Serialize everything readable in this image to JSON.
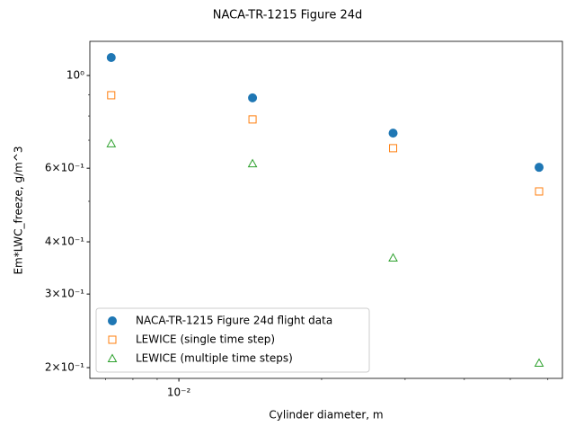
{
  "chart_data": {
    "type": "scatter",
    "title": "NACA-TR-1215 Figure 24d",
    "x_label": "Cylinder diameter, m",
    "y_label": "Em*LWC_freeze, g/m^3",
    "xscale": "log",
    "yscale": "log",
    "xlim": [
      0.00649,
      0.0644
    ],
    "ylim": [
      0.1885,
      1.207
    ],
    "xticks": [
      {
        "value": 0.01,
        "label": "10⁻²"
      }
    ],
    "xminorticks": [
      0.007,
      0.008,
      0.009,
      0.02,
      0.03,
      0.04,
      0.05,
      0.06
    ],
    "yticks": [
      {
        "value": 1,
        "label": "10⁰"
      },
      {
        "value": 0.6,
        "label": "6×10⁻¹"
      },
      {
        "value": 0.4,
        "label": "4×10⁻¹"
      },
      {
        "value": 0.3,
        "label": "3×10⁻¹"
      },
      {
        "value": 0.2,
        "label": "2×10⁻¹"
      }
    ],
    "yminorticks": [
      0.5,
      0.7,
      0.8,
      0.9
    ],
    "legend": "lower left",
    "x": [
      0.0072,
      0.0143,
      0.0283,
      0.0575
    ],
    "series": [
      {
        "name": "NACA-TR-1215 Figure 24d flight data",
        "color": "#1f77b4",
        "marker": "circle",
        "filled": true,
        "values": [
          1.104,
          0.884,
          0.728,
          0.603
        ]
      },
      {
        "name": "LEWICE (single time step)",
        "color": "#ff7f0e",
        "marker": "square",
        "filled": false,
        "values": [
          0.897,
          0.785,
          0.67,
          0.528
        ]
      },
      {
        "name": "LEWICE (multiple time steps)",
        "color": "#2ca02c",
        "marker": "triangle",
        "filled": false,
        "values": [
          0.687,
          0.615,
          0.366,
          0.205
        ]
      }
    ]
  }
}
